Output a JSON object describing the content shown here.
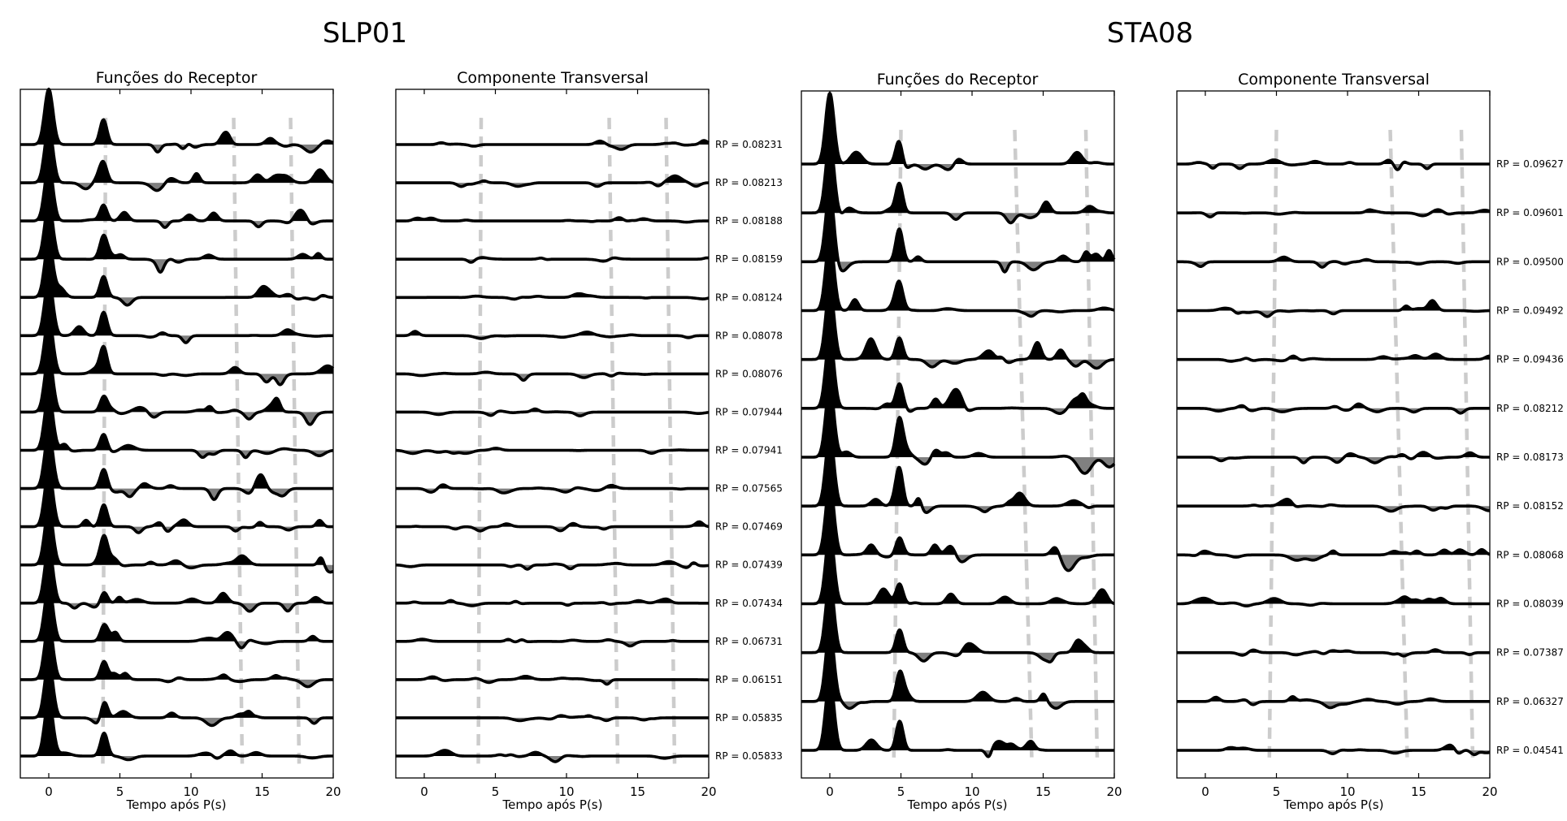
{
  "chart_data": [
    {
      "station": "SLP01",
      "panels": [
        {
          "type": "line",
          "title": "Funções do Receptor",
          "xlabel": "Tempo após P(s)",
          "xlim": [
            -2,
            20
          ],
          "xticks": [
            0,
            5,
            10,
            15,
            20
          ],
          "moveout_lines": [
            [
              4.0,
              3.8
            ],
            [
              13.0,
              13.6
            ],
            [
              17.0,
              17.6
            ]
          ],
          "trace_count": 17
        },
        {
          "type": "line",
          "title": "Componente Transversal",
          "xlabel": "Tempo após P(s)",
          "xlim": [
            -2,
            20
          ],
          "xticks": [
            0,
            5,
            10,
            15,
            20
          ],
          "moveout_lines": [
            [
              4.0,
              3.8
            ],
            [
              13.0,
              13.6
            ],
            [
              17.0,
              17.6
            ]
          ],
          "trace_count": 17
        }
      ],
      "rp_labels": [
        "RP = 0.08231",
        "RP = 0.08213",
        "RP = 0.08188",
        "RP = 0.08159",
        "RP = 0.08124",
        "RP = 0.08078",
        "RP = 0.08076",
        "RP = 0.07944",
        "RP = 0.07941",
        "RP = 0.07565",
        "RP = 0.07469",
        "RP = 0.07439",
        "RP = 0.07434",
        "RP = 0.06731",
        "RP = 0.06151",
        "RP = 0.05835",
        "RP = 0.05833"
      ]
    },
    {
      "station": "STA08",
      "panels": [
        {
          "type": "line",
          "title": "Funções do Receptor",
          "xlabel": "Tempo após P(s)",
          "xlim": [
            -2,
            20
          ],
          "xticks": [
            0,
            5,
            10,
            15,
            20
          ],
          "moveout_lines": [
            [
              5.0,
              4.5
            ],
            [
              13.0,
              14.2
            ],
            [
              18.0,
              18.8
            ]
          ],
          "trace_count": 13
        },
        {
          "type": "line",
          "title": "Componente Transversal",
          "xlabel": "Tempo após P(s)",
          "xlim": [
            -2,
            20
          ],
          "xticks": [
            0,
            5,
            10,
            15,
            20
          ],
          "moveout_lines": [
            [
              5.0,
              4.5
            ],
            [
              13.0,
              14.2
            ],
            [
              18.0,
              18.8
            ]
          ],
          "trace_count": 13
        }
      ],
      "rp_labels": [
        "RP = 0.09627",
        "RP = 0.09601",
        "RP = 0.09500",
        "RP = 0.09492",
        "RP = 0.09436",
        "RP = 0.08212",
        "RP = 0.08173",
        "RP = 0.08152",
        "RP = 0.08068",
        "RP = 0.08039",
        "RP = 0.07387",
        "RP = 0.06327",
        "RP = 0.04541"
      ]
    }
  ],
  "colors": {
    "trace": "#000000",
    "positive_fill": "#000000",
    "negative_fill": "#808080",
    "moveout": "#cccccc"
  }
}
